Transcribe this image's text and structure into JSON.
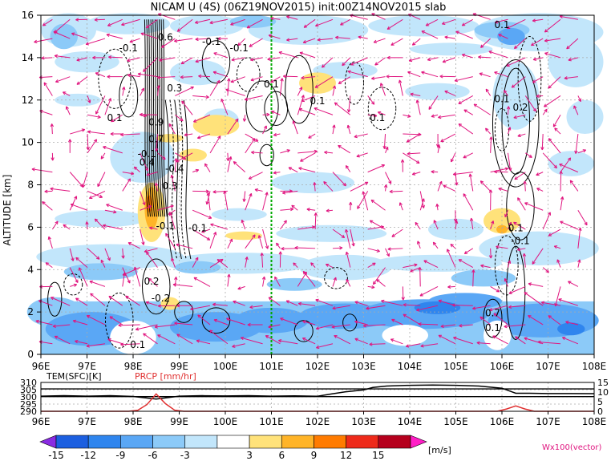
{
  "chart_data": [
    {
      "type": "heatmap",
      "title": "NICAM U (4S) (06Z19NOV2015) init:00Z14NOV2015 slab",
      "ylabel": "ALTITUDE [km]",
      "x_ticks": [
        "96E",
        "97E",
        "98E",
        "99E",
        "100E",
        "101E",
        "102E",
        "103E",
        "104E",
        "105E",
        "106E",
        "107E",
        "108E"
      ],
      "y_ticks": [
        "0",
        "2",
        "4",
        "6",
        "8",
        "10",
        "12",
        "14",
        "16"
      ],
      "xlim": [
        96,
        108
      ],
      "ylim": [
        0,
        16
      ],
      "grid": true,
      "reference_line_x": 101,
      "contour_labels": [
        {
          "text": "-0.1",
          "x": 97.9,
          "y": 14.3
        },
        {
          "text": "-0.1",
          "x": 99.7,
          "y": 14.6
        },
        {
          "text": "-0.1",
          "x": 100.3,
          "y": 14.3
        },
        {
          "text": "0.1",
          "x": 97.6,
          "y": 11.0
        },
        {
          "text": "0.1",
          "x": 101.0,
          "y": 12.6
        },
        {
          "text": "0.1",
          "x": 102.0,
          "y": 11.8
        },
        {
          "text": "0.1",
          "x": 103.3,
          "y": 11.0
        },
        {
          "text": "0.1",
          "x": 106.0,
          "y": 15.4
        },
        {
          "text": "0.1",
          "x": 106.0,
          "y": 11.9
        },
        {
          "text": "0.2",
          "x": 106.4,
          "y": 11.5
        },
        {
          "text": "0.6",
          "x": 98.7,
          "y": 14.8
        },
        {
          "text": "0.3",
          "x": 98.9,
          "y": 12.4
        },
        {
          "text": "0.9",
          "x": 98.5,
          "y": 10.8
        },
        {
          "text": "0.7",
          "x": 98.5,
          "y": 10.0
        },
        {
          "text": "-0.1",
          "x": 98.3,
          "y": 9.3
        },
        {
          "text": "-0.4",
          "x": 98.9,
          "y": 8.6
        },
        {
          "text": "0.4",
          "x": 98.3,
          "y": 8.9
        },
        {
          "text": "0.3",
          "x": 98.8,
          "y": 7.8
        },
        {
          "text": "-0.1",
          "x": 98.7,
          "y": 5.9
        },
        {
          "text": "-0.1",
          "x": 99.4,
          "y": 5.8
        },
        {
          "text": "0.2",
          "x": 98.4,
          "y": 3.3
        },
        {
          "text": "-0.2",
          "x": 98.6,
          "y": 2.5
        },
        {
          "text": "0.1",
          "x": 106.3,
          "y": 5.8
        },
        {
          "text": "-0.1",
          "x": 106.4,
          "y": 5.2
        },
        {
          "text": "0.7",
          "x": 105.8,
          "y": 1.8
        },
        {
          "text": "0.1",
          "x": 105.8,
          "y": 1.1
        },
        {
          "text": "0.1",
          "x": 98.1,
          "y": 0.3
        }
      ]
    },
    {
      "type": "line",
      "series_labels": [
        "TEM(SFC)[K]",
        "PRCP [mm/hr]"
      ],
      "x_ticks": [
        "96E",
        "97E",
        "98E",
        "99E",
        "100E",
        "101E",
        "102E",
        "103E",
        "104E",
        "105E",
        "106E",
        "107E",
        "108E"
      ],
      "y_left_ticks": [
        "290",
        "295",
        "300",
        "305",
        "310"
      ],
      "y_right_ticks": [
        "0",
        "5",
        "10",
        "15"
      ],
      "y_left_lim": [
        290,
        310
      ],
      "y_right_lim": [
        0,
        15
      ],
      "series": [
        {
          "name": "TEM(SFC)[K]",
          "color": "#000000",
          "x": [
            96,
            96.5,
            97,
            97.5,
            98,
            98.5,
            99,
            99.5,
            100,
            100.5,
            101,
            101.5,
            102,
            102.3,
            102.6,
            103,
            103.2,
            103.5,
            104,
            104.5,
            105,
            105.5,
            106,
            106.3,
            106.6,
            107,
            107.5,
            108
          ],
          "y": [
            300.5,
            300.8,
            300.5,
            300.8,
            300.3,
            298.5,
            300.5,
            300.8,
            300.6,
            300.8,
            300.5,
            300.7,
            300.4,
            302,
            303.5,
            304.8,
            306.5,
            307.5,
            308,
            308.2,
            308,
            307.5,
            306,
            302.5,
            302.5,
            302.3,
            302.3,
            302.2
          ]
        },
        {
          "name": "PRCP [mm/hr]",
          "color": "#e03030",
          "x": [
            96,
            97,
            97.9,
            98.1,
            98.3,
            98.5,
            98.7,
            98.9,
            99.1,
            100,
            101,
            102,
            103,
            104,
            105,
            105.9,
            106.1,
            106.3,
            106.5,
            106.7,
            107,
            108
          ],
          "y": [
            0,
            0,
            0,
            0.5,
            3.5,
            9,
            4,
            0.6,
            0,
            0,
            0,
            0,
            0,
            0,
            0,
            0,
            1.2,
            2.8,
            1.2,
            0,
            0,
            0
          ]
        }
      ],
      "reference_lines_left": [
        305.5,
        300.2
      ]
    },
    {
      "type": "colorbar",
      "ticks": [
        "-15",
        "-12",
        "-9",
        "-6",
        "-3",
        "3",
        "6",
        "9",
        "12",
        "15"
      ],
      "unit": "[m/s]",
      "note": "Wx100(vector)",
      "colors": [
        "#8a2be2",
        "#1c5fe0",
        "#2f85ee",
        "#5aa7f5",
        "#8ccaf8",
        "#c2e6fb",
        "#ffffff",
        "#ffe27a",
        "#ffb428",
        "#ff7b00",
        "#ee2a1a",
        "#b5001d",
        "#ff1dc6"
      ]
    }
  ],
  "colors": {
    "vector": "#e0157f",
    "reference_line": "#00aa00",
    "prcp_axis_label": "#e03030"
  }
}
